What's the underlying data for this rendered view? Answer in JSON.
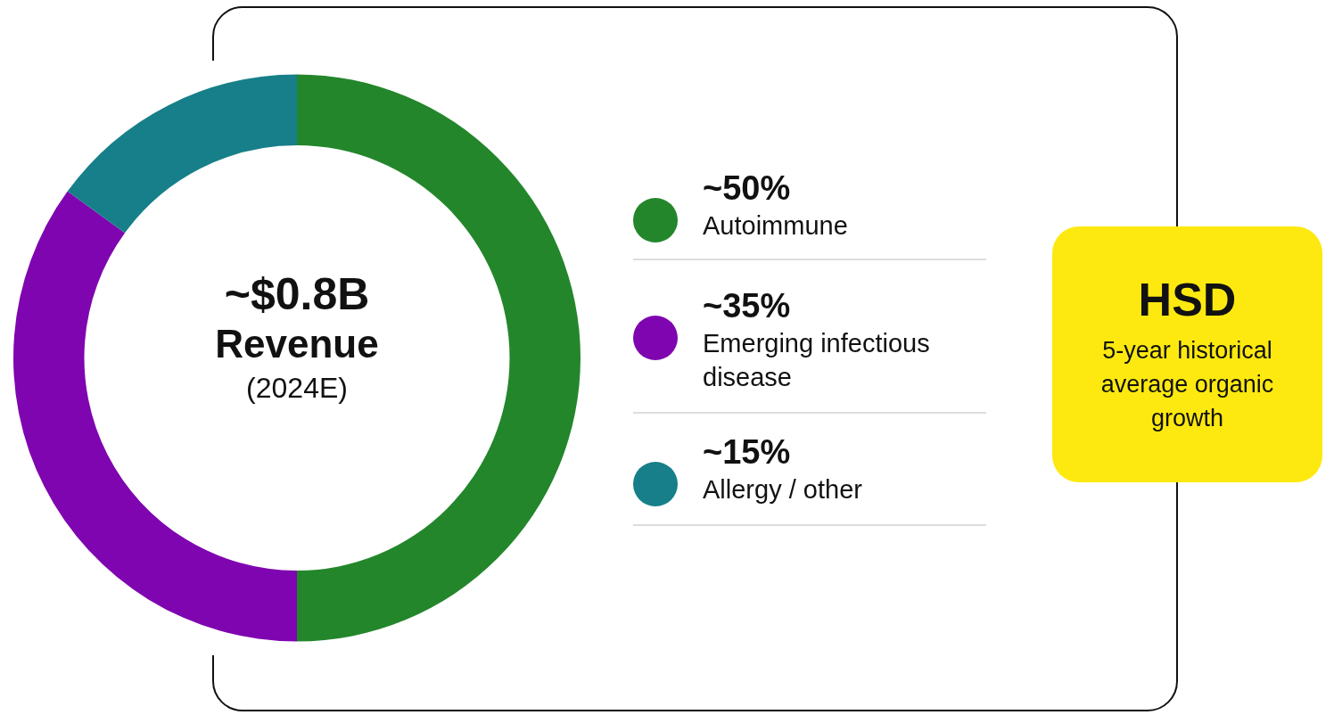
{
  "chart_data": {
    "type": "donut",
    "title": "~$0.8B",
    "subtitle": "Revenue",
    "xlabel": "(2024E)",
    "categories": [
      "Autoimmune",
      "Emerging infectious disease",
      "Allergy / other"
    ],
    "values": [
      50,
      35,
      15
    ],
    "colors": [
      "#23862b",
      "#7f05b0",
      "#167f89"
    ],
    "value_labels": [
      "~50%",
      "~35%",
      "~15%"
    ],
    "legend": "right",
    "annotations": [
      "HSD",
      "5-year historical average organic growth"
    ]
  }
}
